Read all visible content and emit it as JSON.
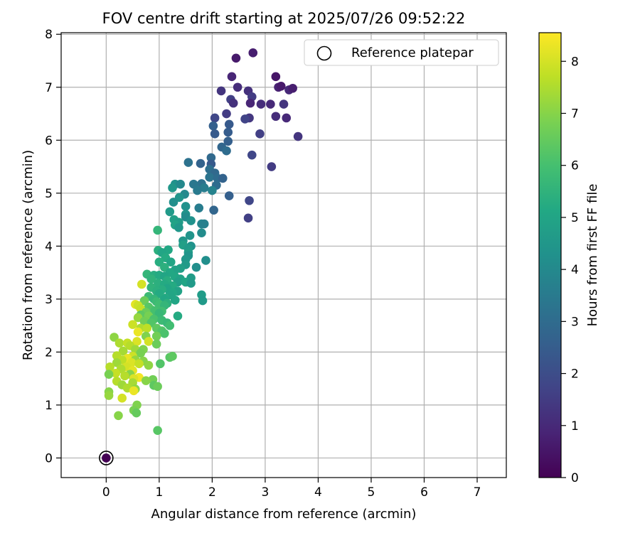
{
  "chart_data": {
    "type": "scatter",
    "title": "FOV centre drift starting at 2025/07/26 09:52:22",
    "xlabel": "Angular distance from reference (arcmin)",
    "ylabel": "Rotation from reference (arcmin)",
    "xlim": [
      -0.85,
      7.55
    ],
    "ylim": [
      -0.37,
      8.03
    ],
    "xticks": [
      "0",
      "1",
      "2",
      "3",
      "4",
      "5",
      "6",
      "7"
    ],
    "yticks": [
      "0",
      "1",
      "2",
      "3",
      "4",
      "5",
      "6",
      "7",
      "8"
    ],
    "grid": true,
    "legend": {
      "placement": "top-right",
      "entries": [
        "Reference platepar"
      ]
    },
    "colorbar": {
      "label": "Hours from first FF file",
      "range": [
        0,
        8.55
      ],
      "ticks": [
        "0",
        "1",
        "2",
        "3",
        "4",
        "5",
        "6",
        "7",
        "8"
      ],
      "colormap": "viridis"
    },
    "reference_point": {
      "x": 0,
      "y": 0,
      "hours": 0
    },
    "points": [
      [
        2.45,
        7.55,
        0.6
      ],
      [
        2.77,
        7.65,
        0.7
      ],
      [
        2.37,
        7.2,
        0.9
      ],
      [
        3.2,
        7.2,
        0.5
      ],
      [
        3.25,
        7.0,
        0.8
      ],
      [
        3.3,
        7.02,
        0.6
      ],
      [
        3.45,
        6.95,
        1.0
      ],
      [
        3.52,
        6.98,
        0.7
      ],
      [
        2.48,
        7.0,
        1.1
      ],
      [
        2.17,
        6.93,
        1.3
      ],
      [
        2.68,
        6.93,
        1.2
      ],
      [
        2.75,
        6.82,
        1.5
      ],
      [
        2.35,
        6.77,
        1.6
      ],
      [
        2.4,
        6.7,
        1.2
      ],
      [
        2.72,
        6.7,
        0.9
      ],
      [
        2.92,
        6.68,
        1.1
      ],
      [
        3.1,
        6.68,
        1.0
      ],
      [
        3.35,
        6.68,
        1.3
      ],
      [
        2.27,
        6.5,
        1.5
      ],
      [
        2.05,
        6.42,
        1.8
      ],
      [
        2.7,
        6.42,
        1.4
      ],
      [
        2.62,
        6.4,
        1.7
      ],
      [
        3.2,
        6.45,
        1.1
      ],
      [
        3.4,
        6.42,
        1.0
      ],
      [
        2.32,
        6.3,
        2.4
      ],
      [
        2.02,
        6.27,
        2.6
      ],
      [
        2.3,
        6.15,
        2.5
      ],
      [
        2.05,
        6.12,
        2.4
      ],
      [
        2.9,
        6.12,
        1.6
      ],
      [
        3.62,
        6.07,
        1.3
      ],
      [
        2.3,
        5.98,
        2.6
      ],
      [
        2.18,
        5.87,
        2.8
      ],
      [
        2.27,
        5.8,
        3.0
      ],
      [
        2.75,
        5.72,
        1.8
      ],
      [
        1.98,
        5.67,
        2.9
      ],
      [
        1.55,
        5.58,
        3.2
      ],
      [
        1.78,
        5.56,
        2.7
      ],
      [
        1.98,
        5.55,
        2.4
      ],
      [
        3.12,
        5.5,
        1.5
      ],
      [
        1.95,
        5.45,
        3.1
      ],
      [
        2.05,
        5.38,
        2.9
      ],
      [
        1.95,
        5.3,
        3.3
      ],
      [
        2.1,
        5.28,
        3.0
      ],
      [
        2.2,
        5.28,
        2.7
      ],
      [
        1.8,
        5.18,
        3.2
      ],
      [
        1.65,
        5.17,
        3.4
      ],
      [
        2.08,
        5.15,
        3.0
      ],
      [
        1.3,
        5.17,
        4.3
      ],
      [
        1.4,
        5.17,
        4.0
      ],
      [
        1.25,
        5.1,
        4.5
      ],
      [
        1.85,
        5.1,
        3.6
      ],
      [
        2.0,
        5.05,
        3.8
      ],
      [
        1.72,
        5.05,
        3.5
      ],
      [
        1.48,
        4.98,
        4.0
      ],
      [
        2.32,
        4.95,
        2.6
      ],
      [
        1.38,
        4.92,
        4.4
      ],
      [
        2.7,
        4.86,
        1.8
      ],
      [
        1.27,
        4.83,
        4.2
      ],
      [
        1.5,
        4.75,
        4.3
      ],
      [
        1.75,
        4.72,
        3.6
      ],
      [
        2.03,
        4.68,
        2.8
      ],
      [
        1.2,
        4.65,
        4.6
      ],
      [
        1.5,
        4.6,
        4.4
      ],
      [
        1.5,
        4.55,
        4.1
      ],
      [
        1.28,
        4.5,
        4.8
      ],
      [
        2.68,
        4.53,
        1.6
      ],
      [
        1.37,
        4.45,
        4.7
      ],
      [
        1.6,
        4.48,
        4.3
      ],
      [
        1.3,
        4.4,
        4.9
      ],
      [
        1.8,
        4.42,
        3.9
      ],
      [
        1.85,
        4.42,
        3.7
      ],
      [
        1.37,
        4.35,
        4.5
      ],
      [
        0.97,
        4.3,
        5.6
      ],
      [
        1.8,
        4.25,
        4.1
      ],
      [
        1.58,
        4.2,
        4.4
      ],
      [
        1.45,
        4.1,
        4.5
      ],
      [
        1.45,
        4.02,
        4.8
      ],
      [
        1.6,
        4.0,
        4.3
      ],
      [
        1.55,
        3.95,
        4.6
      ],
      [
        1.17,
        3.93,
        5.1
      ],
      [
        0.98,
        3.92,
        5.4
      ],
      [
        1.05,
        3.88,
        5.0
      ],
      [
        1.55,
        3.88,
        4.7
      ],
      [
        1.55,
        3.82,
        4.4
      ],
      [
        1.12,
        3.78,
        5.2
      ],
      [
        1.5,
        3.75,
        4.5
      ],
      [
        1.88,
        3.73,
        4.2
      ],
      [
        1.0,
        3.7,
        5.3
      ],
      [
        1.22,
        3.7,
        5.0
      ],
      [
        1.5,
        3.65,
        4.6
      ],
      [
        1.1,
        3.6,
        5.4
      ],
      [
        1.7,
        3.6,
        4.2
      ],
      [
        1.4,
        3.58,
        4.8
      ],
      [
        1.3,
        3.55,
        4.9
      ],
      [
        1.2,
        3.5,
        5.1
      ],
      [
        0.77,
        3.47,
        5.6
      ],
      [
        0.9,
        3.45,
        5.3
      ],
      [
        1.0,
        3.45,
        5.2
      ],
      [
        1.1,
        3.43,
        5.0
      ],
      [
        1.3,
        3.42,
        5.1
      ],
      [
        1.6,
        3.4,
        4.7
      ],
      [
        1.4,
        3.38,
        4.9
      ],
      [
        0.85,
        3.38,
        5.5
      ],
      [
        1.15,
        3.35,
        5.3
      ],
      [
        1.35,
        3.32,
        4.8
      ],
      [
        1.5,
        3.32,
        5.0
      ],
      [
        0.98,
        3.3,
        5.4
      ],
      [
        1.1,
        3.28,
        5.2
      ],
      [
        0.67,
        3.28,
        8.0
      ],
      [
        1.6,
        3.3,
        4.6
      ],
      [
        1.25,
        3.25,
        5.2
      ],
      [
        0.85,
        3.22,
        5.5
      ],
      [
        1.15,
        3.2,
        5.0
      ],
      [
        1.05,
        3.18,
        5.3
      ],
      [
        0.95,
        3.15,
        5.4
      ],
      [
        1.35,
        3.15,
        4.9
      ],
      [
        1.25,
        3.12,
        5.1
      ],
      [
        1.0,
        3.1,
        5.2
      ],
      [
        1.2,
        3.08,
        5.0
      ],
      [
        1.8,
        3.08,
        4.7
      ],
      [
        0.8,
        3.05,
        5.8
      ],
      [
        1.1,
        3.02,
        5.3
      ],
      [
        0.9,
        3.0,
        5.6
      ],
      [
        1.1,
        3.0,
        5.1
      ],
      [
        1.3,
        2.98,
        5.0
      ],
      [
        1.82,
        2.97,
        4.6
      ],
      [
        0.72,
        2.97,
        6.6
      ],
      [
        0.95,
        2.95,
        5.8
      ],
      [
        1.15,
        2.92,
        5.4
      ],
      [
        1.0,
        2.9,
        5.9
      ],
      [
        0.55,
        2.9,
        8.2
      ],
      [
        0.6,
        2.88,
        7.9
      ],
      [
        1.1,
        2.88,
        5.6
      ],
      [
        0.8,
        2.85,
        6.3
      ],
      [
        0.65,
        2.82,
        7.8
      ],
      [
        0.85,
        2.8,
        6.2
      ],
      [
        0.92,
        2.78,
        6.0
      ],
      [
        1.05,
        2.77,
        5.9
      ],
      [
        0.75,
        2.75,
        6.6
      ],
      [
        1.0,
        2.73,
        5.7
      ],
      [
        1.35,
        2.68,
        5.2
      ],
      [
        0.65,
        2.7,
        6.4
      ],
      [
        0.8,
        2.68,
        6.8
      ],
      [
        0.6,
        2.65,
        7.2
      ],
      [
        0.9,
        2.62,
        6.1
      ],
      [
        1.05,
        2.6,
        5.8
      ],
      [
        0.72,
        2.58,
        6.7
      ],
      [
        1.15,
        2.55,
        5.7
      ],
      [
        0.85,
        2.55,
        6.2
      ],
      [
        0.5,
        2.52,
        7.9
      ],
      [
        1.2,
        2.5,
        5.9
      ],
      [
        0.65,
        2.45,
        7.5
      ],
      [
        0.77,
        2.45,
        7.7
      ],
      [
        0.95,
        2.45,
        6.4
      ],
      [
        1.05,
        2.4,
        6.2
      ],
      [
        0.6,
        2.38,
        8.3
      ],
      [
        1.1,
        2.35,
        6.1
      ],
      [
        0.75,
        2.3,
        6.9
      ],
      [
        0.95,
        2.3,
        6.7
      ],
      [
        0.15,
        2.28,
        7.1
      ],
      [
        0.58,
        2.2,
        8.1
      ],
      [
        0.8,
        2.2,
        8.0
      ],
      [
        0.25,
        2.17,
        7.5
      ],
      [
        0.4,
        2.17,
        7.8
      ],
      [
        0.45,
        2.12,
        7.6
      ],
      [
        0.95,
        2.15,
        6.6
      ],
      [
        0.55,
        2.05,
        7.3
      ],
      [
        0.7,
        2.05,
        6.9
      ],
      [
        0.32,
        2.02,
        7.4
      ],
      [
        0.65,
        1.98,
        6.8
      ],
      [
        0.2,
        1.93,
        7.6
      ],
      [
        0.5,
        1.92,
        7.9
      ],
      [
        0.4,
        1.88,
        8.3
      ],
      [
        1.2,
        1.9,
        6.3
      ],
      [
        1.25,
        1.92,
        6.4
      ],
      [
        0.3,
        1.85,
        7.7
      ],
      [
        0.55,
        1.85,
        7.2
      ],
      [
        0.7,
        1.83,
        7.0
      ],
      [
        0.2,
        1.8,
        7.3
      ],
      [
        0.48,
        1.8,
        8.1
      ],
      [
        0.62,
        1.78,
        7.8
      ],
      [
        1.02,
        1.78,
        6.2
      ],
      [
        0.07,
        1.72,
        7.6
      ],
      [
        0.38,
        1.72,
        8.0
      ],
      [
        0.8,
        1.75,
        7.1
      ],
      [
        0.28,
        1.68,
        7.5
      ],
      [
        0.5,
        1.65,
        8.2
      ],
      [
        0.18,
        1.6,
        7.8
      ],
      [
        0.05,
        1.58,
        6.8
      ],
      [
        0.45,
        1.58,
        7.0
      ],
      [
        0.35,
        1.55,
        7.6
      ],
      [
        0.62,
        1.52,
        8.4
      ],
      [
        0.52,
        1.5,
        8.1
      ],
      [
        0.88,
        1.48,
        6.7
      ],
      [
        0.75,
        1.46,
        7.0
      ],
      [
        0.2,
        1.45,
        7.6
      ],
      [
        0.5,
        1.42,
        7.4
      ],
      [
        0.3,
        1.38,
        7.3
      ],
      [
        0.9,
        1.37,
        6.4
      ],
      [
        0.4,
        1.32,
        7.5
      ],
      [
        0.55,
        1.3,
        7.1
      ],
      [
        0.97,
        1.35,
        6.6
      ],
      [
        0.52,
        1.27,
        8.3
      ],
      [
        0.05,
        1.25,
        7.0
      ],
      [
        0.05,
        1.18,
        7.2
      ],
      [
        0.3,
        1.13,
        8.0
      ],
      [
        0.58,
        1.0,
        6.9
      ],
      [
        0.52,
        0.9,
        6.8
      ],
      [
        0.57,
        0.85,
        6.5
      ],
      [
        0.23,
        0.8,
        7.0
      ],
      [
        0.97,
        0.52,
        6.3
      ]
    ]
  }
}
